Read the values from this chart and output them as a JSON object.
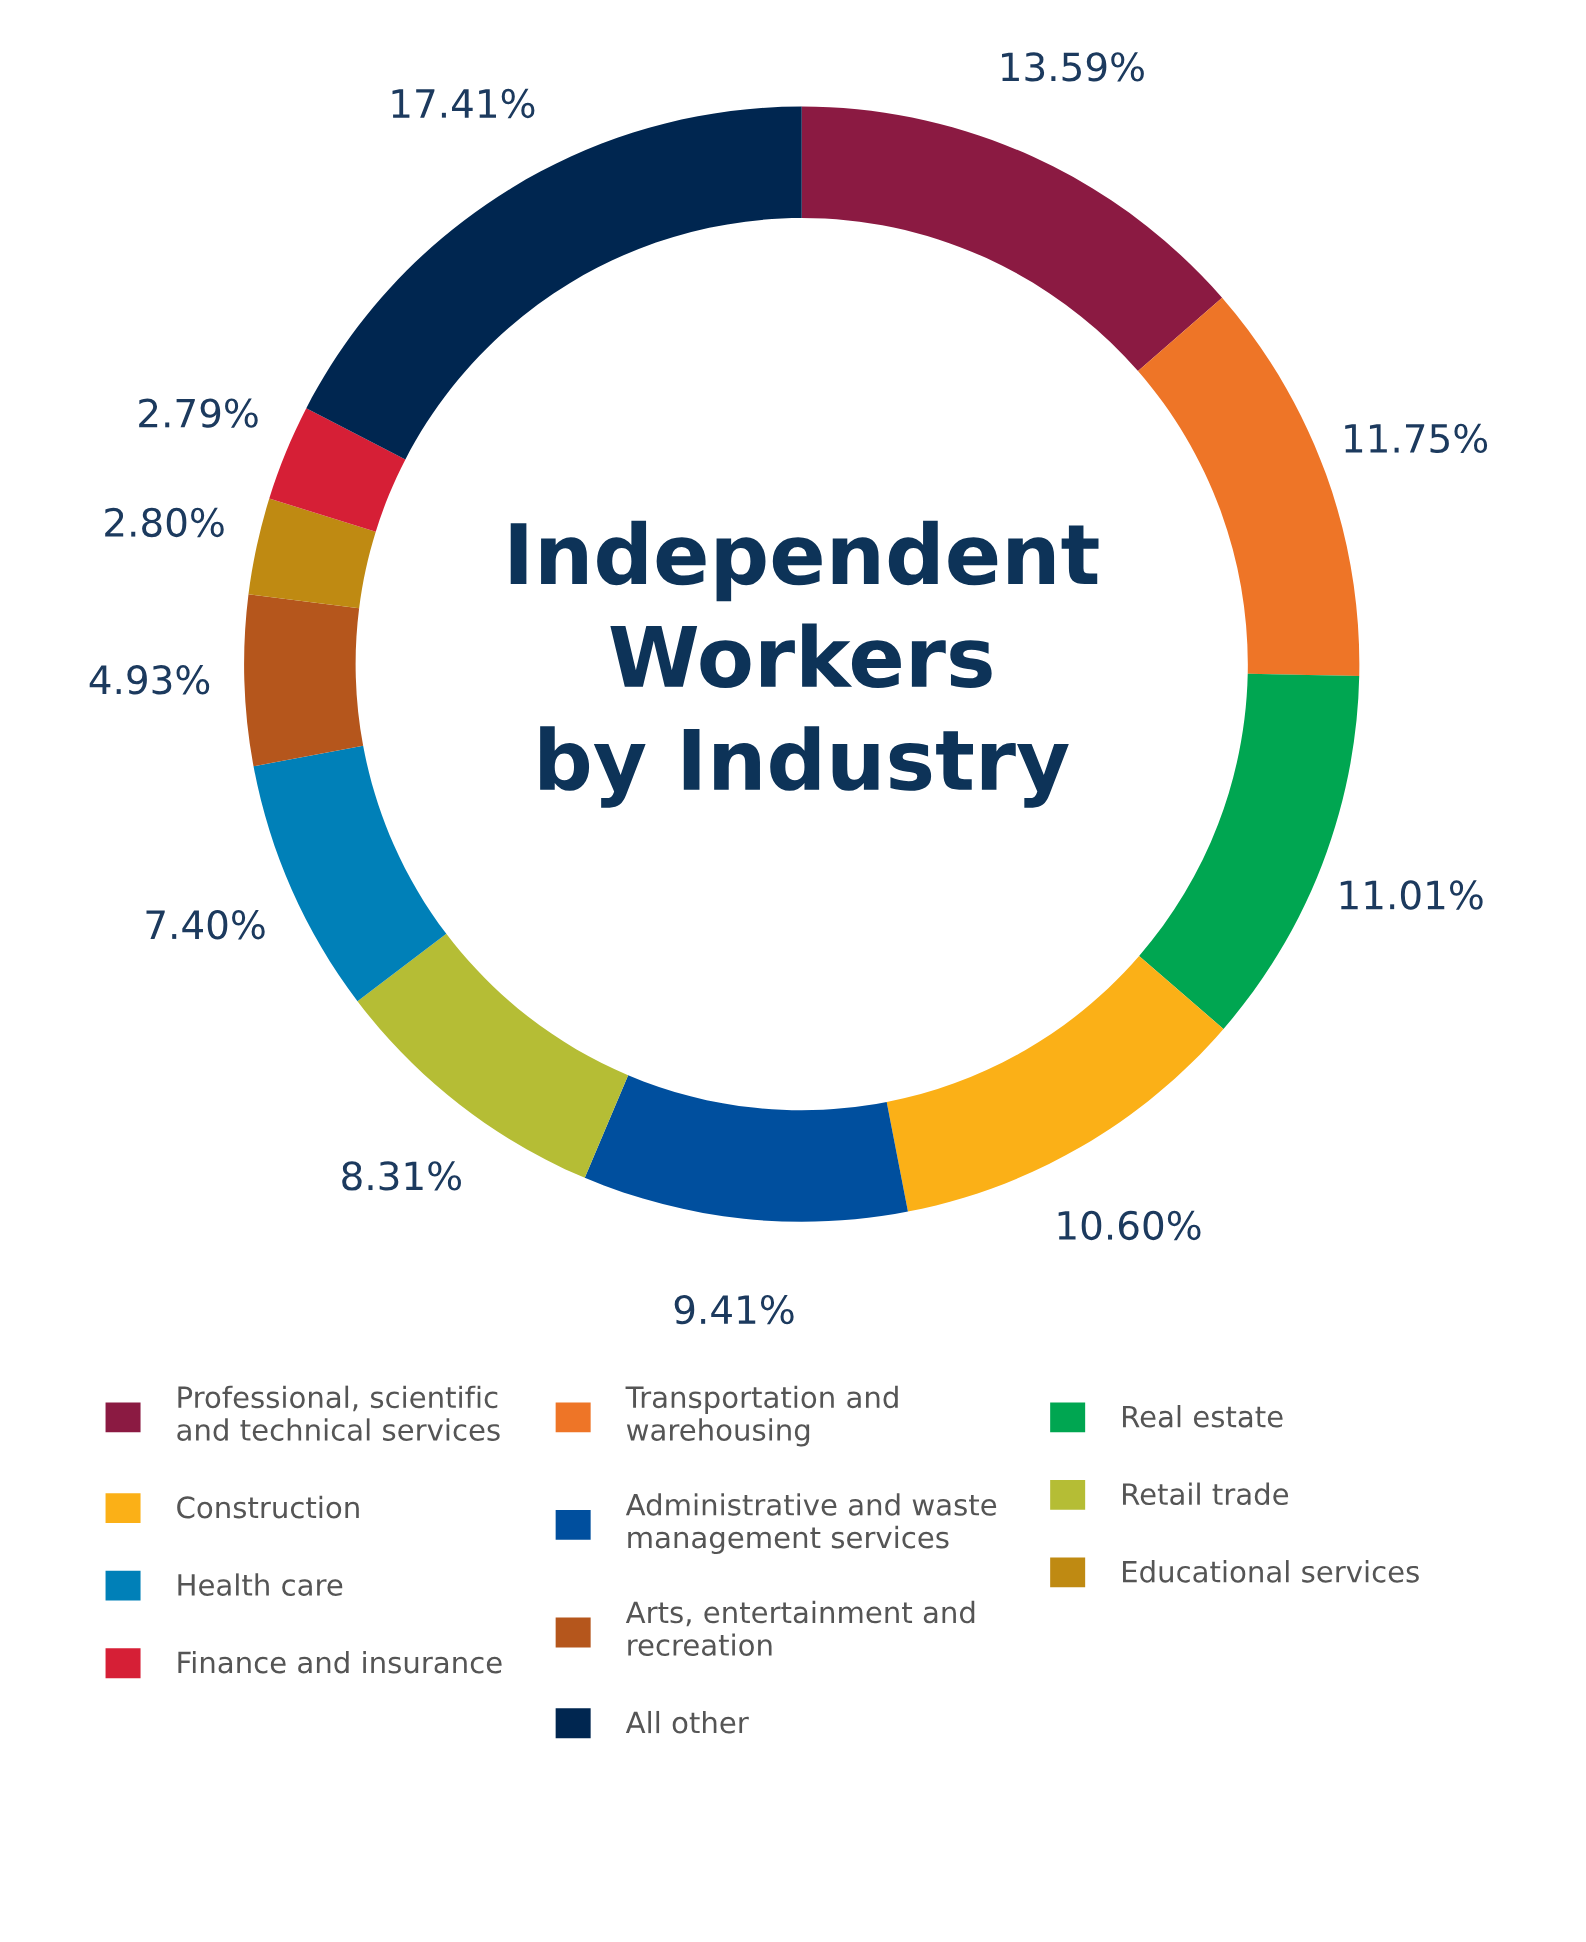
{
  "chart_data": {
    "type": "donut",
    "title": "Independent\nWorkers\nby Industry",
    "categories": [
      "Professional, scientific\nand technical services",
      "Transportation and\nwarehousing",
      "Real estate",
      "Construction",
      "Administrative and waste\nmanagement services",
      "Retail trade",
      "Health care",
      "Arts, entertainment and\nrecreation",
      "Educational services",
      "Finance and insurance",
      "All other"
    ],
    "values": [
      13.59,
      11.75,
      11.01,
      10.6,
      9.41,
      8.31,
      7.4,
      4.93,
      2.8,
      2.79,
      17.41
    ],
    "value_labels": [
      "13.59%",
      "11.75%",
      "11.01%",
      "10.60%",
      "9.41%",
      "8.31%",
      "7.40%",
      "4.93%",
      "2.80%",
      "2.79%",
      "17.41%"
    ],
    "colors": [
      "#8b1a42",
      "#ee7527",
      "#00a651",
      "#fbb017",
      "#004f9e",
      "#b5bd35",
      "#0080b8",
      "#b5561c",
      "#bf8a12",
      "#d61f36",
      "#002650"
    ],
    "legend": "bottom"
  }
}
